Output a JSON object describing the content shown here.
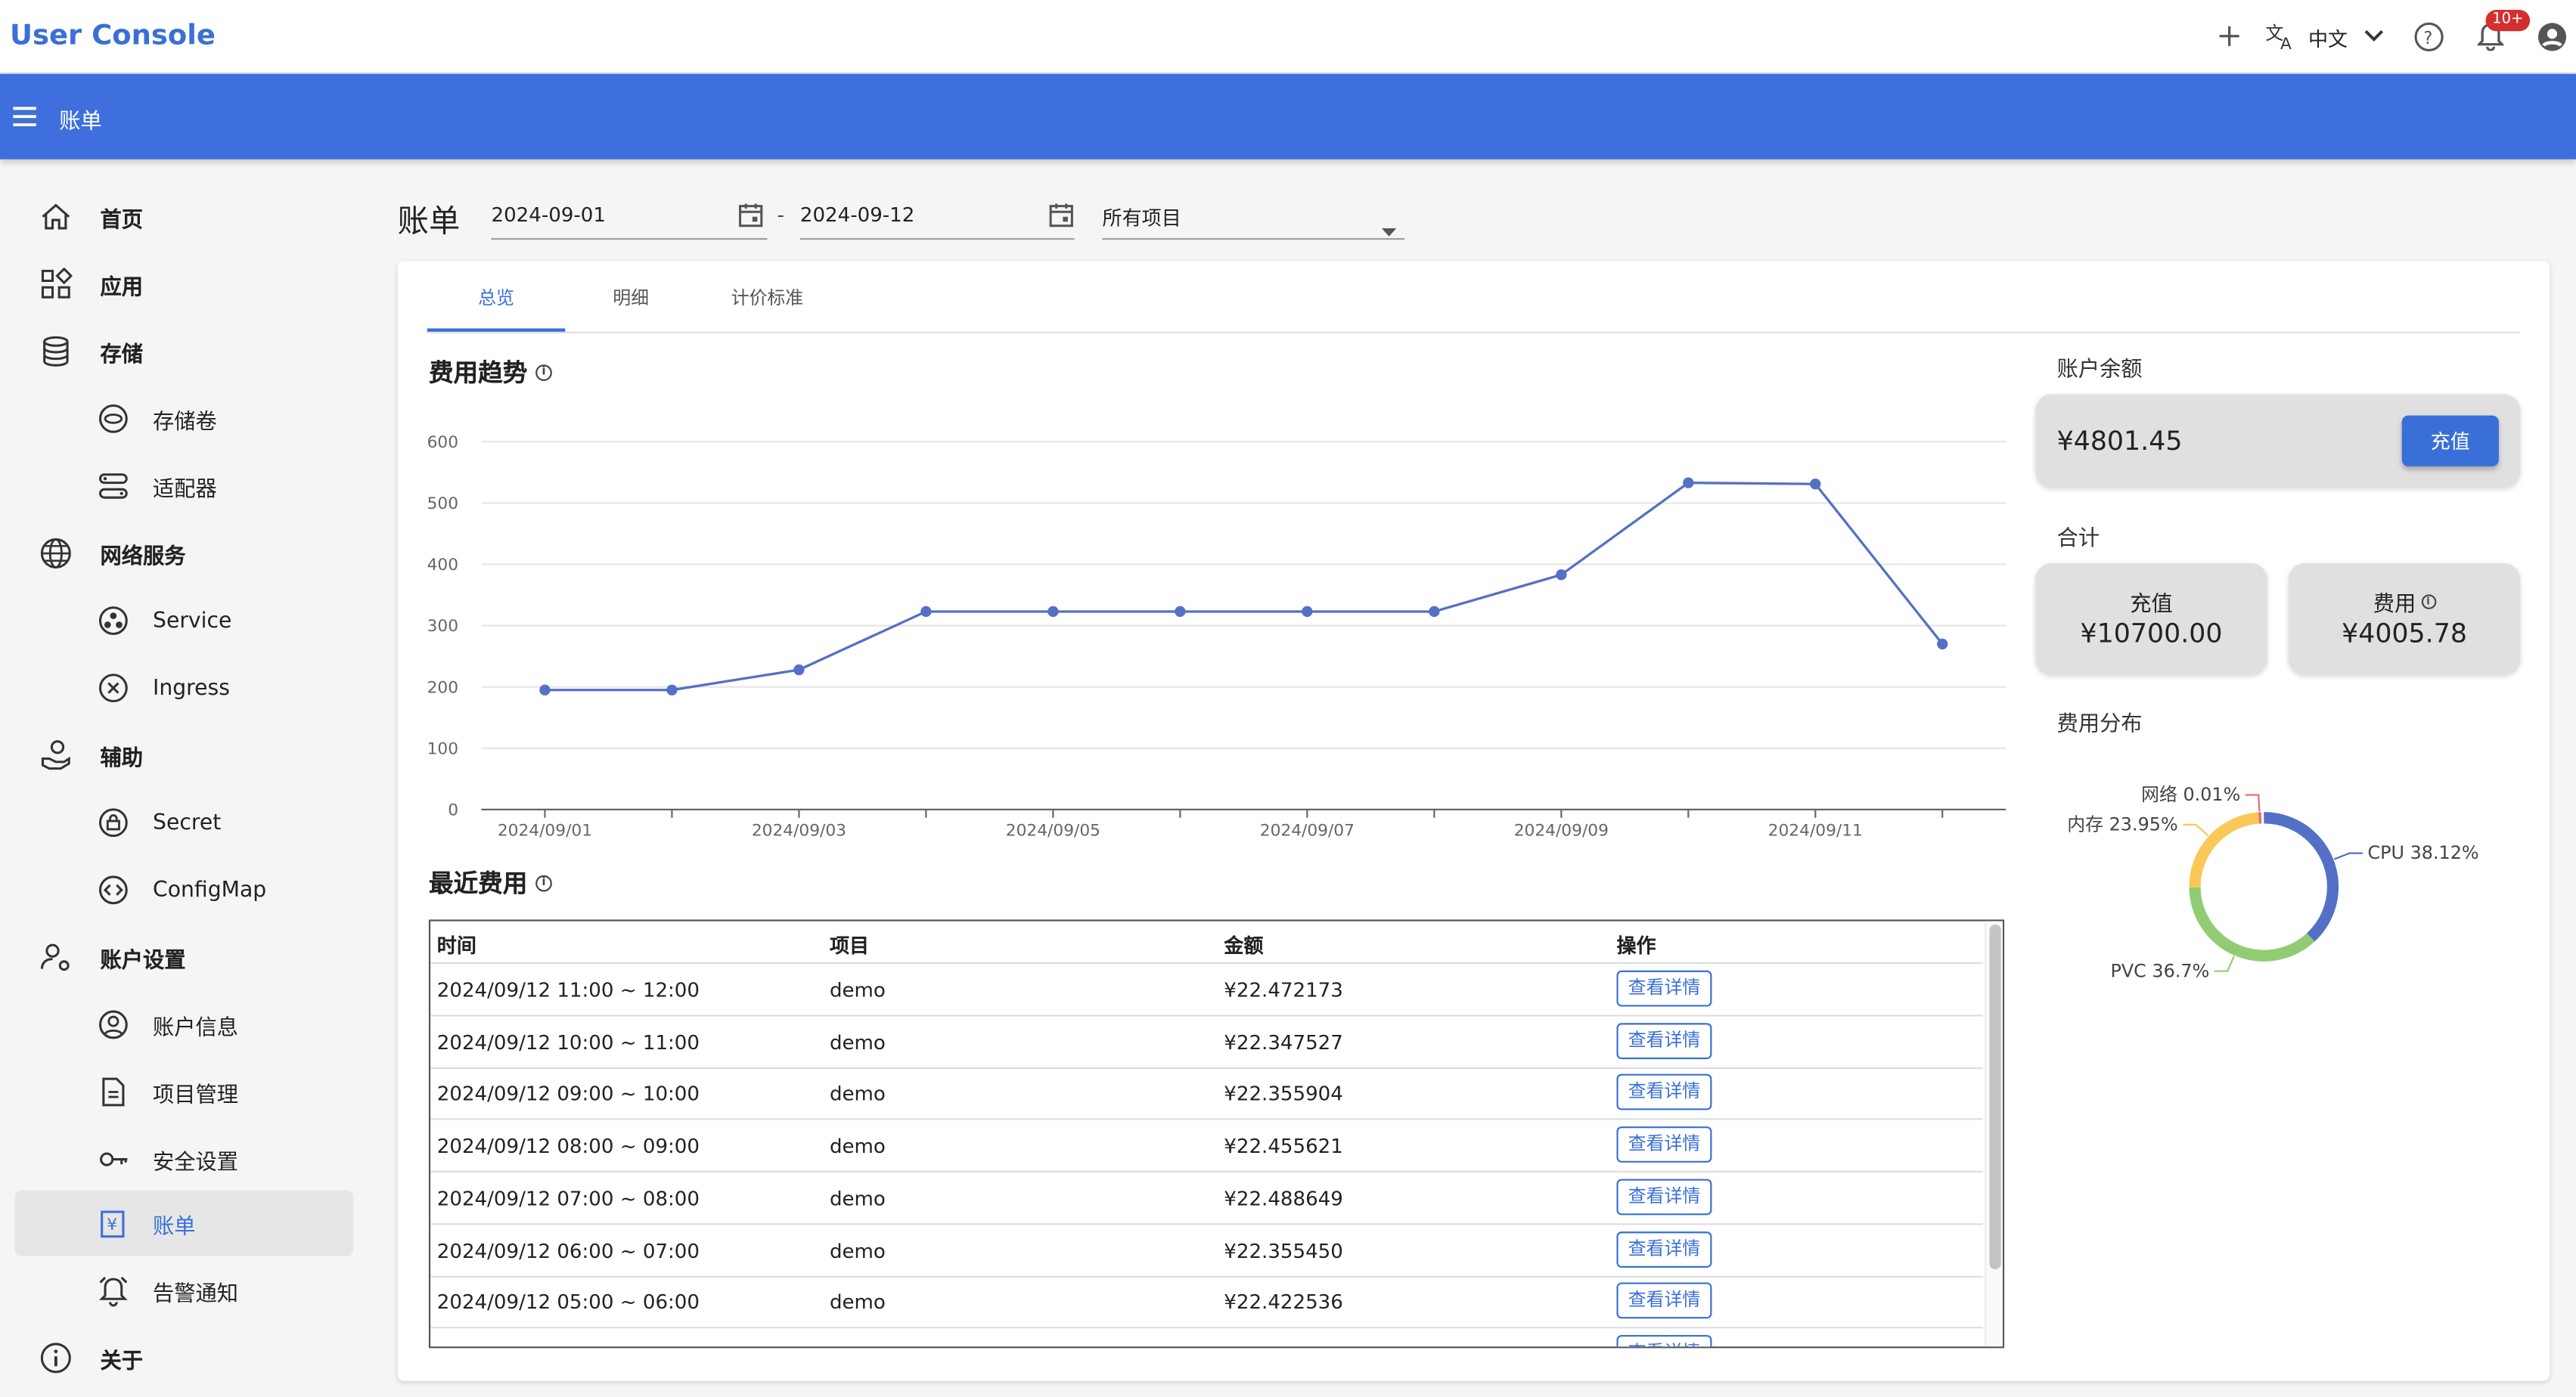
{
  "app": {
    "title": "User Console"
  },
  "topbar": {
    "language": "中文",
    "notification_badge": "10+",
    "icons": [
      "plus-icon",
      "translate-icon",
      "chevron-down-icon",
      "help-icon",
      "bell-icon",
      "account-icon"
    ]
  },
  "header": {
    "breadcrumb": "账单"
  },
  "sidebar": {
    "items": [
      {
        "label": "首页",
        "icon": "home-icon",
        "level": 1
      },
      {
        "label": "应用",
        "icon": "apps-icon",
        "level": 1
      },
      {
        "label": "存储",
        "icon": "database-icon",
        "level": 1
      },
      {
        "label": "存储卷",
        "icon": "volume-icon",
        "level": 2
      },
      {
        "label": "适配器",
        "icon": "adapter-icon",
        "level": 2
      },
      {
        "label": "网络服务",
        "icon": "globe-icon",
        "level": 1
      },
      {
        "label": "Service",
        "icon": "service-icon",
        "level": 2
      },
      {
        "label": "Ingress",
        "icon": "ingress-icon",
        "level": 2
      },
      {
        "label": "辅助",
        "icon": "hand-coin-icon",
        "level": 1
      },
      {
        "label": "Secret",
        "icon": "lock-icon",
        "level": 2
      },
      {
        "label": "ConfigMap",
        "icon": "code-icon",
        "level": 2
      },
      {
        "label": "账户设置",
        "icon": "user-gear-icon",
        "level": 1
      },
      {
        "label": "账户信息",
        "icon": "account-circle-icon",
        "level": 2
      },
      {
        "label": "项目管理",
        "icon": "document-icon",
        "level": 2
      },
      {
        "label": "安全设置",
        "icon": "key-icon",
        "level": 2
      },
      {
        "label": "账单",
        "icon": "bill-icon",
        "level": 2,
        "active": true
      },
      {
        "label": "告警通知",
        "icon": "alarm-icon",
        "level": 2
      },
      {
        "label": "关于",
        "icon": "info-icon",
        "level": 1
      }
    ]
  },
  "filters": {
    "title": "账单",
    "start_date": "2024-09-01",
    "separator": "-",
    "end_date": "2024-09-12",
    "project": "所有项目"
  },
  "tabs": [
    {
      "label": "总览",
      "active": true
    },
    {
      "label": "明细"
    },
    {
      "label": "计价标准"
    }
  ],
  "trend": {
    "title": "费用趋势"
  },
  "chart_data": {
    "type": "line",
    "x": [
      "2024/09/01",
      "2024/09/02",
      "2024/09/03",
      "2024/09/04",
      "2024/09/05",
      "2024/09/06",
      "2024/09/07",
      "2024/09/08",
      "2024/09/09",
      "2024/09/10",
      "2024/09/11",
      "2024/09/12"
    ],
    "x_tick_labels": [
      "2024/09/01",
      "2024/09/03",
      "2024/09/05",
      "2024/09/07",
      "2024/09/09",
      "2024/09/11"
    ],
    "values": [
      195,
      195,
      228,
      323,
      323,
      323,
      323,
      323,
      383,
      533,
      531,
      270
    ],
    "yticks": [
      0,
      100,
      200,
      300,
      400,
      500,
      600
    ],
    "ylim": [
      0,
      600
    ],
    "color": "#5470c6",
    "grid": "horizontal"
  },
  "recent": {
    "title": "最近费用",
    "columns": [
      "时间",
      "项目",
      "金额",
      "操作"
    ],
    "detail_label": "查看详情",
    "rows": [
      {
        "time": "2024/09/12 11:00 ~ 12:00",
        "project": "demo",
        "amount": "¥22.472173"
      },
      {
        "time": "2024/09/12 10:00 ~ 11:00",
        "project": "demo",
        "amount": "¥22.347527"
      },
      {
        "time": "2024/09/12 09:00 ~ 10:00",
        "project": "demo",
        "amount": "¥22.355904"
      },
      {
        "time": "2024/09/12 08:00 ~ 09:00",
        "project": "demo",
        "amount": "¥22.455621"
      },
      {
        "time": "2024/09/12 07:00 ~ 08:00",
        "project": "demo",
        "amount": "¥22.488649"
      },
      {
        "time": "2024/09/12 06:00 ~ 07:00",
        "project": "demo",
        "amount": "¥22.355450"
      },
      {
        "time": "2024/09/12 05:00 ~ 06:00",
        "project": "demo",
        "amount": "¥22.422536"
      }
    ]
  },
  "account": {
    "balance_label": "账户余额",
    "balance": "¥4801.45",
    "recharge_label": "充值",
    "total_label": "合计",
    "recharge_total_label": "充值",
    "recharge_total": "¥10700.00",
    "cost_total_label": "费用",
    "cost_total": "¥4005.78",
    "distribution_label": "费用分布"
  },
  "distribution": {
    "type": "pie",
    "slices": [
      {
        "name": "CPU",
        "percent": 38.12,
        "label": "CPU 38.12%",
        "color": "#5470c6"
      },
      {
        "name": "PVC",
        "percent": 36.7,
        "label": "PVC 36.7%",
        "color": "#91cc75"
      },
      {
        "name": "内存",
        "percent": 23.95,
        "label": "内存 23.95%",
        "color": "#fac858"
      },
      {
        "name": "网络",
        "percent": 0.01,
        "label": "网络 0.01%",
        "color": "#ee6666"
      }
    ]
  }
}
